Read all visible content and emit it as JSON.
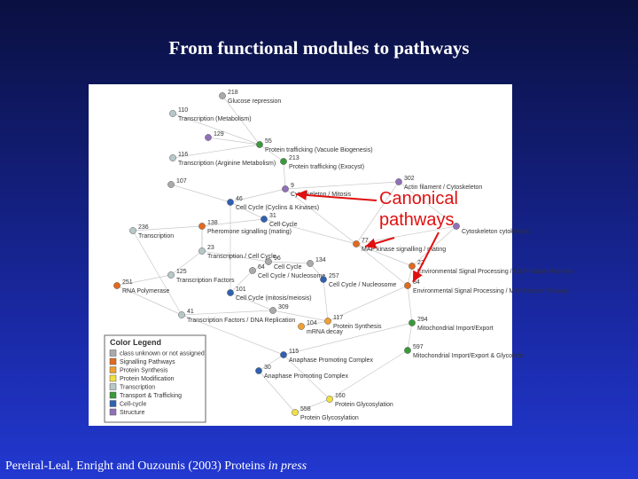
{
  "title": "From functional modules to pathways",
  "footer": {
    "text": "Pereiral-Leal, Enright and Ouzounis (2003) Proteins",
    "emphasis": "in press"
  },
  "network": {
    "nodes": [
      {
        "id": "218",
        "label": "Glucose repression"
      },
      {
        "id": "110",
        "label": "Transcription (Metabolism)"
      },
      {
        "id": "129"
      },
      {
        "id": "55",
        "label": "Protein trafficking (Vacuole Biogenesis)"
      },
      {
        "id": "116",
        "label": "Transcription (Arginine Metabolism)"
      },
      {
        "id": "213",
        "label": "Protein trafficking (Exocyst)"
      },
      {
        "id": "107"
      },
      {
        "id": "9",
        "label": "Cytoskeleton / Mitosis"
      },
      {
        "id": "302",
        "label": "Actin filament / Cytoskeleton"
      },
      {
        "id": "46",
        "label": "Cell Cycle (Cyclins & Kinases)"
      },
      {
        "id": "31",
        "label": "Cell Cycle"
      },
      {
        "id": "138",
        "label": "Pheromone signalling (mating)"
      },
      {
        "id": "236",
        "label": "Transcription"
      },
      {
        "id": "23",
        "label": "Transcription / Cell Cycle"
      },
      {
        "id": "77",
        "label": "MAP kinase signalling / mating"
      },
      {
        "id": "96",
        "label": "Cell Cycle"
      },
      {
        "id": "134"
      },
      {
        "id": "64",
        "label": "Cell Cycle / Nucleosome"
      },
      {
        "id": "125",
        "label": "Transcription Factors"
      },
      {
        "id": "257",
        "label": "Cell Cycle / Nucleosome"
      },
      {
        "id": "22",
        "label": "Environmental Signal Processing / MAP Kinase Pathway"
      },
      {
        "id": "84",
        "label": "Environmental Signal Processing / MAP Kinase Pathway"
      },
      {
        "id": "251",
        "label": "RNA Polymerase"
      },
      {
        "id": "101",
        "label": "Cell Cycle (mitosis/meiosis)"
      },
      {
        "id": "309"
      },
      {
        "id": "41",
        "label": "Transcription Factors / DNA Replication"
      },
      {
        "id": "117",
        "label": "Protein Synthesis"
      },
      {
        "id": "104",
        "label": "mRNA decay"
      },
      {
        "id": "294",
        "label": "Mitochondrial Import/Export"
      },
      {
        "id": "115",
        "label": "Anaphase Promoting Complex"
      },
      {
        "id": "597",
        "label": "Mitochondrial Import/Export & Glycolysis"
      },
      {
        "id": "30",
        "label": "Anaphase Promoting Complex"
      },
      {
        "id": "160",
        "label": "Protein Glycosylation"
      },
      {
        "id": "558",
        "label": "Protein Glycosylation"
      },
      {
        "label": "Cytoskeleton cytokinesis"
      }
    ]
  },
  "legend": {
    "title": "Color Legend",
    "entries": [
      "class unknown or not assigned",
      "Signalling Pathways",
      "Protein Synthesis",
      "Protein Modification",
      "Transcription",
      "Transport & Trafficking",
      "Cell-cycle",
      "Structure"
    ]
  },
  "overlay": {
    "line1": "Canonical",
    "line2": "pathways"
  }
}
